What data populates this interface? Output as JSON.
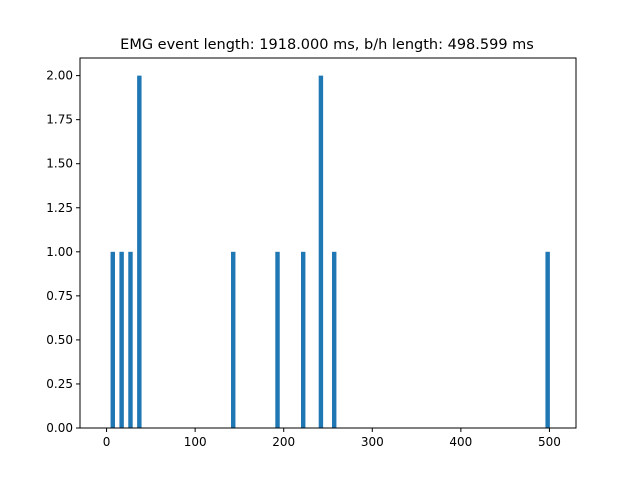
{
  "chart_data": {
    "type": "bar",
    "title": "EMG event length: 1918.000 ms, b/h length: 498.599 ms",
    "xlabel": "",
    "ylabel": "",
    "xlim": [
      -30,
      530
    ],
    "ylim": [
      0,
      2.1
    ],
    "bar_color": "#1f77b4",
    "bar_width": 5,
    "x_ticks": [
      0,
      100,
      200,
      300,
      400,
      500
    ],
    "x_tick_labels": [
      "0",
      "100",
      "200",
      "300",
      "400",
      "500"
    ],
    "y_ticks": [
      0,
      0.25,
      0.5,
      0.75,
      1.0,
      1.25,
      1.5,
      1.75,
      2.0
    ],
    "y_tick_labels": [
      "0.00",
      "0.25",
      "0.50",
      "0.75",
      "1.00",
      "1.25",
      "1.50",
      "1.75",
      "2.00"
    ],
    "grid": false,
    "bars": [
      {
        "x": 7,
        "value": 1
      },
      {
        "x": 17,
        "value": 1
      },
      {
        "x": 27,
        "value": 1
      },
      {
        "x": 37,
        "value": 2
      },
      {
        "x": 143,
        "value": 1
      },
      {
        "x": 193,
        "value": 1
      },
      {
        "x": 222,
        "value": 1
      },
      {
        "x": 242,
        "value": 2
      },
      {
        "x": 257,
        "value": 1
      },
      {
        "x": 498,
        "value": 1
      }
    ]
  }
}
